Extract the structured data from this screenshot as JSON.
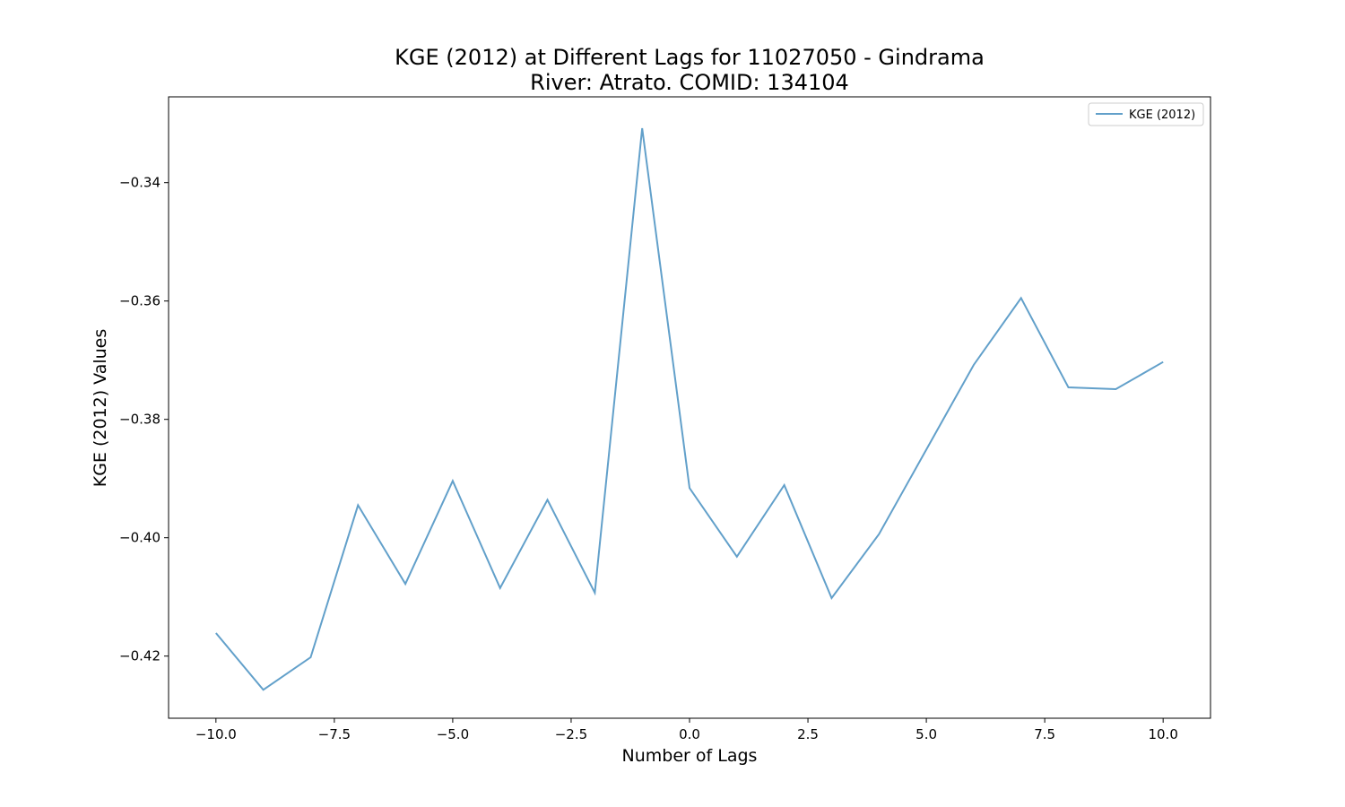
{
  "chart_data": {
    "type": "line",
    "title_line1": "KGE (2012) at Different Lags for 11027050 - Gindrama",
    "title_line2": "River: Atrato. COMID: 134104",
    "xlabel": "Number of Lags",
    "ylabel": "KGE (2012) Values",
    "xlim": [
      -11,
      11
    ],
    "ylim": [
      -0.4305,
      -0.3255
    ],
    "xticks": [
      -10.0,
      -7.5,
      -5.0,
      -2.5,
      0.0,
      2.5,
      5.0,
      7.5,
      10.0
    ],
    "xtick_labels": [
      "−10.0",
      "−7.5",
      "−5.0",
      "−2.5",
      "0.0",
      "2.5",
      "5.0",
      "7.5",
      "10.0"
    ],
    "yticks": [
      -0.34,
      -0.36,
      -0.38,
      -0.4,
      -0.42
    ],
    "ytick_labels": [
      "−0.34",
      "−0.36",
      "−0.38",
      "−0.40",
      "−0.42"
    ],
    "grid": false,
    "legend_position": "top-right",
    "series": [
      {
        "name": "KGE (2012)",
        "color": "#1f77b4",
        "x": [
          -10,
          -9,
          -8,
          -7,
          -6,
          -5,
          -4,
          -3,
          -2,
          -1,
          0,
          1,
          2,
          3,
          4,
          5,
          6,
          7,
          8,
          9,
          10
        ],
        "y": [
          -0.4161,
          -0.4257,
          -0.4202,
          -0.3945,
          -0.4078,
          -0.3904,
          -0.4085,
          -0.3936,
          -0.4093,
          -0.3308,
          -0.3916,
          -0.4032,
          -0.3911,
          -0.4102,
          -0.3994,
          -0.3851,
          -0.3708,
          -0.3595,
          -0.3746,
          -0.3749,
          -0.3703
        ]
      }
    ]
  }
}
